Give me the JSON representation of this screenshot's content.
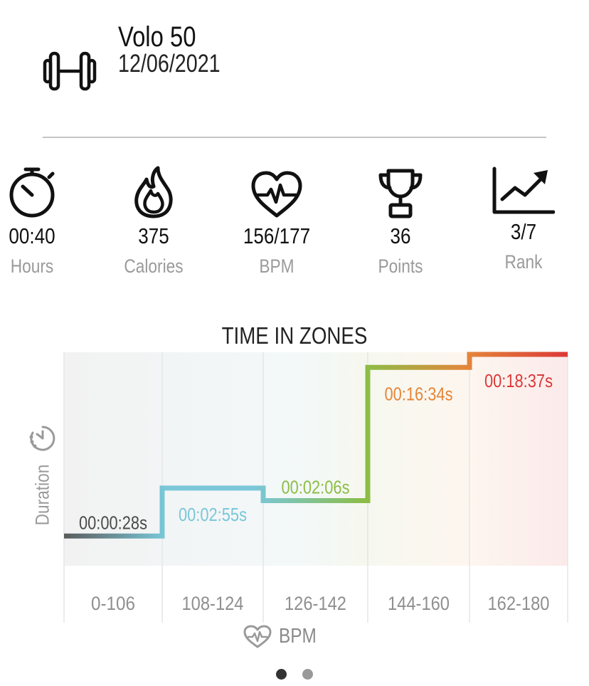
{
  "activity": {
    "name": "Volo 50",
    "date": "12/06/2021",
    "icon": "dumbbell-icon"
  },
  "stats": [
    {
      "key": "duration",
      "value": "00:40",
      "label": "Hours",
      "icon": "stopwatch-icon"
    },
    {
      "key": "calories",
      "value": "375",
      "label": "Calories",
      "icon": "flame-icon"
    },
    {
      "key": "bpm",
      "value": "156/177",
      "label": "BPM",
      "icon": "heart-pulse-icon"
    },
    {
      "key": "points",
      "value": "36",
      "label": "Points",
      "icon": "trophy-icon"
    },
    {
      "key": "rank",
      "value": "3/7",
      "label": "Rank",
      "icon": "trend-chart-icon"
    }
  ],
  "chart": {
    "title": "TIME IN ZONES",
    "y_label": "Duration",
    "x_label": "BPM"
  },
  "chart_data": {
    "type": "line",
    "title": "TIME IN ZONES",
    "xlabel": "BPM",
    "ylabel": "Duration",
    "categories": [
      "0-106",
      "108-124",
      "126-142",
      "144-160",
      "162-180"
    ],
    "durations": [
      "00:00:28s",
      "00:02:55s",
      "00:02:06s",
      "00:16:34s",
      "00:18:37s"
    ],
    "values_seconds": [
      28,
      175,
      126,
      994,
      1117
    ],
    "ylim": [
      0,
      1117
    ],
    "grid": true,
    "legend": "none"
  },
  "colors": {
    "zone1": "#5b5b5b",
    "zone2": "#79c7d9",
    "zone3": "#8cbd45",
    "zone4": "#e4863a",
    "zone5": "#dc3838",
    "muted_text": "#9a9a9a"
  },
  "pagination": {
    "pages": 2,
    "current": 1
  }
}
